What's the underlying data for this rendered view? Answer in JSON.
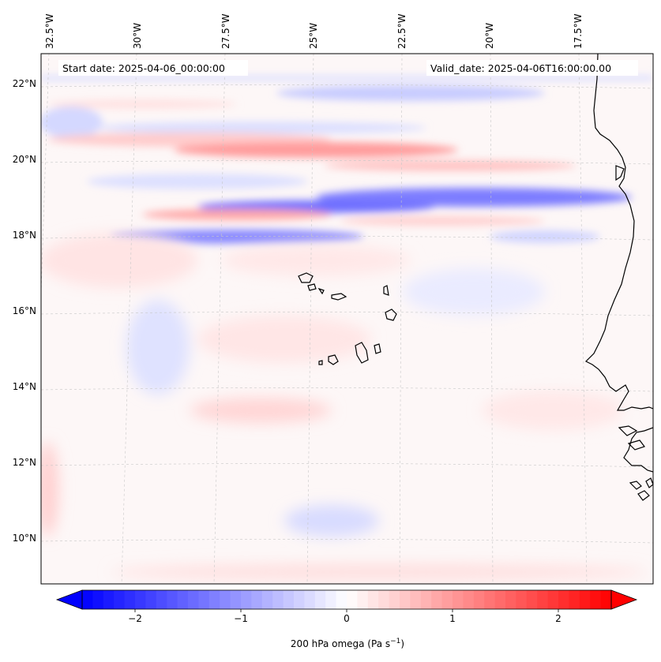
{
  "map": {
    "start_date": "Start date: 2025-04-06_00:00:00",
    "valid_date": "Valid_date: 2025-04-06T16:00:00.00",
    "lon_labels": [
      "32.5°W",
      "30°W",
      "27.5°W",
      "25°W",
      "22.5°W",
      "20°W",
      "17.5°W"
    ],
    "lat_labels": [
      "22°N",
      "20°N",
      "18°N",
      "16°N",
      "14°N",
      "12°N",
      "10°N"
    ],
    "field": "200 hPa omega",
    "colormap": "bwr",
    "colors": {
      "negative": "#0000ff",
      "zero": "#ffffff",
      "positive": "#ff0000",
      "coastline": "#000000",
      "gridline": "#b0b0b0"
    }
  },
  "colorbar": {
    "label_main": "200 hPa omega (Pa s",
    "label_sup": "−1",
    "label_end": ")",
    "ticks": [
      "−2",
      "−1",
      "0",
      "1",
      "2"
    ],
    "tick_values": [
      -2,
      -1,
      0,
      1,
      2
    ],
    "range": [
      -2.5,
      2.5
    ],
    "extend": "both"
  }
}
